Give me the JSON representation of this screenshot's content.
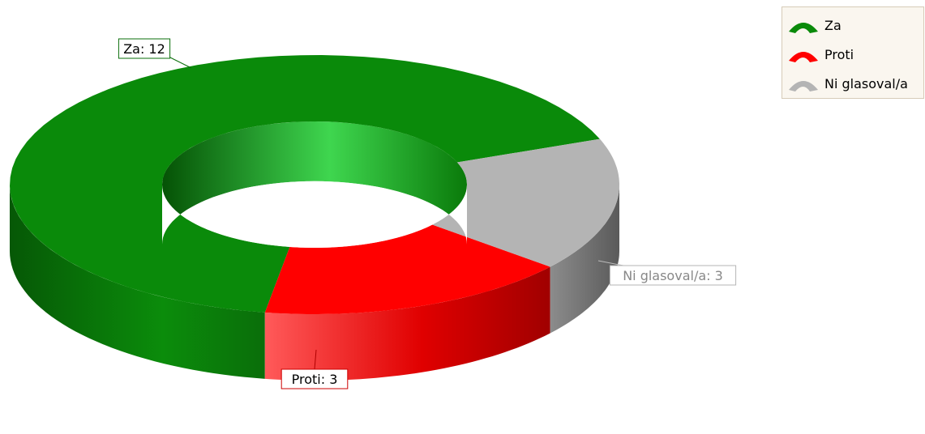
{
  "chart_data": {
    "type": "pie",
    "variant": "3d-donut",
    "title": "",
    "slices": [
      {
        "label": "Za",
        "value": 12,
        "color": "#0a8a0a",
        "data_label": "Za: 12"
      },
      {
        "label": "Proti",
        "value": 3,
        "color": "#ff0000",
        "data_label": "Proti: 3"
      },
      {
        "label": "Ni glasoval/a",
        "value": 3,
        "color": "#b4b4b4",
        "data_label": "Ni glasoval/a: 3"
      }
    ],
    "legend": {
      "placement": "top-right",
      "entries": [
        "Za",
        "Proti",
        "Ni glasoval/a"
      ]
    }
  }
}
